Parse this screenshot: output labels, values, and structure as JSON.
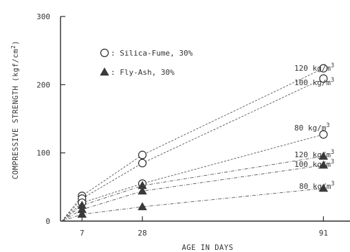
{
  "chart_data": {
    "type": "line",
    "title": "",
    "xlabel": "AGE IN DAYS",
    "ylabel": "COMPRESSIVE STRENGTH",
    "ylabel_units": {
      "prefix": "(kgf/cm",
      "sup": "2",
      "suffix": ")"
    },
    "xlim": [
      0,
      100
    ],
    "ylim": [
      0,
      300
    ],
    "x_ticks": [
      7,
      28,
      91
    ],
    "y_ticks": [
      0,
      100,
      200,
      300
    ],
    "grid": false,
    "legend_position": "top-left",
    "legend": [
      {
        "marker": "open-circle",
        "label": "Silica-Fume, 30%"
      },
      {
        "marker": "filled-triangle",
        "label": "Fly-Ash, 30%"
      }
    ],
    "series": [
      {
        "group": "Silica-Fume, 30%",
        "marker": "open-circle",
        "label_main": "120 kg/m",
        "label_sup": "3",
        "x": [
          0,
          7,
          28,
          91
        ],
        "y": [
          0,
          37,
          97,
          224
        ]
      },
      {
        "group": "Silica-Fume, 30%",
        "marker": "open-circle",
        "label_main": "100 kg/m",
        "label_sup": "3",
        "x": [
          0,
          7,
          28,
          91
        ],
        "y": [
          0,
          33,
          85,
          209
        ]
      },
      {
        "group": "Silica-Fume, 30%",
        "marker": "open-circle",
        "label_main": "80 kg/m",
        "label_sup": "3",
        "x": [
          0,
          7,
          28,
          91
        ],
        "y": [
          0,
          27,
          55,
          127
        ]
      },
      {
        "group": "Fly-Ash, 30%",
        "marker": "filled-triangle",
        "label_main": "120 kg/m",
        "label_sup": "3",
        "x": [
          0,
          7,
          28,
          91
        ],
        "y": [
          0,
          23,
          52,
          95
        ]
      },
      {
        "group": "Fly-Ash, 30%",
        "marker": "filled-triangle",
        "label_main": "100 kg/m",
        "label_sup": "3",
        "x": [
          0,
          7,
          28,
          91
        ],
        "y": [
          0,
          17,
          44,
          82
        ]
      },
      {
        "group": "Fly-Ash, 30%",
        "marker": "filled-triangle",
        "label_main": "80 kg/m",
        "label_sup": "3",
        "x": [
          0,
          7,
          28,
          91
        ],
        "y": [
          0,
          10,
          21,
          48
        ]
      }
    ]
  }
}
